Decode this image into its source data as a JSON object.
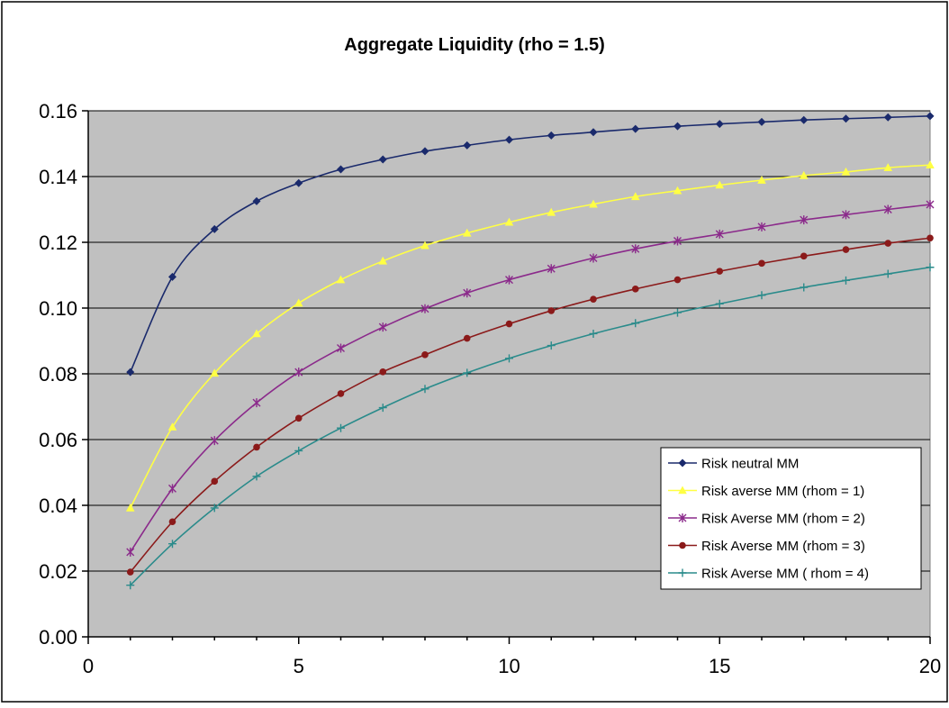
{
  "chart_data": {
    "type": "line",
    "title": "Aggregate Liquidity (rho = 1.5)",
    "xlabel": "",
    "ylabel": "",
    "xlim": [
      0,
      20
    ],
    "ylim": [
      0.0,
      0.16
    ],
    "x_ticks": [
      0,
      5,
      10,
      15,
      20
    ],
    "y_ticks": [
      0.0,
      0.02,
      0.04,
      0.06,
      0.08,
      0.1,
      0.12,
      0.14,
      0.16
    ],
    "x_tick_labels": [
      "0",
      "5",
      "10",
      "15",
      "20"
    ],
    "y_tick_labels": [
      "0.00",
      "0.02",
      "0.04",
      "0.06",
      "0.08",
      "0.10",
      "0.12",
      "0.14",
      "0.16"
    ],
    "grid": "horizontal",
    "legend_position": "bottom-right",
    "plot_background": "#c0c0c0",
    "x": [
      1,
      2,
      3,
      4,
      5,
      6,
      7,
      8,
      9,
      10,
      11,
      12,
      13,
      14,
      15,
      16,
      17,
      18,
      19,
      20
    ],
    "series": [
      {
        "name": "Risk neutral MM",
        "color": "#1a2a6c",
        "marker": "diamond",
        "values": [
          0.0805,
          0.1095,
          0.124,
          0.1325,
          0.138,
          0.1422,
          0.1452,
          0.1477,
          0.1495,
          0.1512,
          0.1525,
          0.1535,
          0.1545,
          0.1553,
          0.156,
          0.1566,
          0.1572,
          0.1576,
          0.158,
          0.1584
        ]
      },
      {
        "name": "Risk averse MM (rhom = 1)",
        "color": "#ffff44",
        "marker": "triangle",
        "values": [
          0.0392,
          0.0638,
          0.0802,
          0.0922,
          0.1015,
          0.1086,
          0.1143,
          0.119,
          0.1228,
          0.1261,
          0.1291,
          0.1316,
          0.1339,
          0.1357,
          0.1374,
          0.1389,
          0.1403,
          0.1414,
          0.1427,
          0.1435
        ]
      },
      {
        "name": "Risk Averse MM (rhom = 2)",
        "color": "#8b2a8b",
        "marker": "star",
        "values": [
          0.0258,
          0.0451,
          0.0597,
          0.0712,
          0.0805,
          0.0878,
          0.0942,
          0.0998,
          0.1046,
          0.1086,
          0.112,
          0.1152,
          0.118,
          0.1204,
          0.1225,
          0.1247,
          0.1268,
          0.1284,
          0.13,
          0.1315
        ]
      },
      {
        "name": "Risk Averse MM (rhom = 3)",
        "color": "#8b1a1a",
        "marker": "circle",
        "values": [
          0.0197,
          0.035,
          0.0473,
          0.0577,
          0.0665,
          0.074,
          0.0806,
          0.0858,
          0.0908,
          0.0952,
          0.0992,
          0.1027,
          0.1058,
          0.1086,
          0.1112,
          0.1136,
          0.1158,
          0.1178,
          0.1197,
          0.1213
        ]
      },
      {
        "name": "Risk Averse MM ( rhom = 4)",
        "color": "#2a8b8b",
        "marker": "plus",
        "values": [
          0.0157,
          0.0283,
          0.0392,
          0.0488,
          0.0566,
          0.0635,
          0.0697,
          0.0754,
          0.0803,
          0.0847,
          0.0886,
          0.0922,
          0.0954,
          0.0986,
          0.1013,
          0.1039,
          0.1063,
          0.1084,
          0.1104,
          0.1124
        ]
      }
    ]
  }
}
